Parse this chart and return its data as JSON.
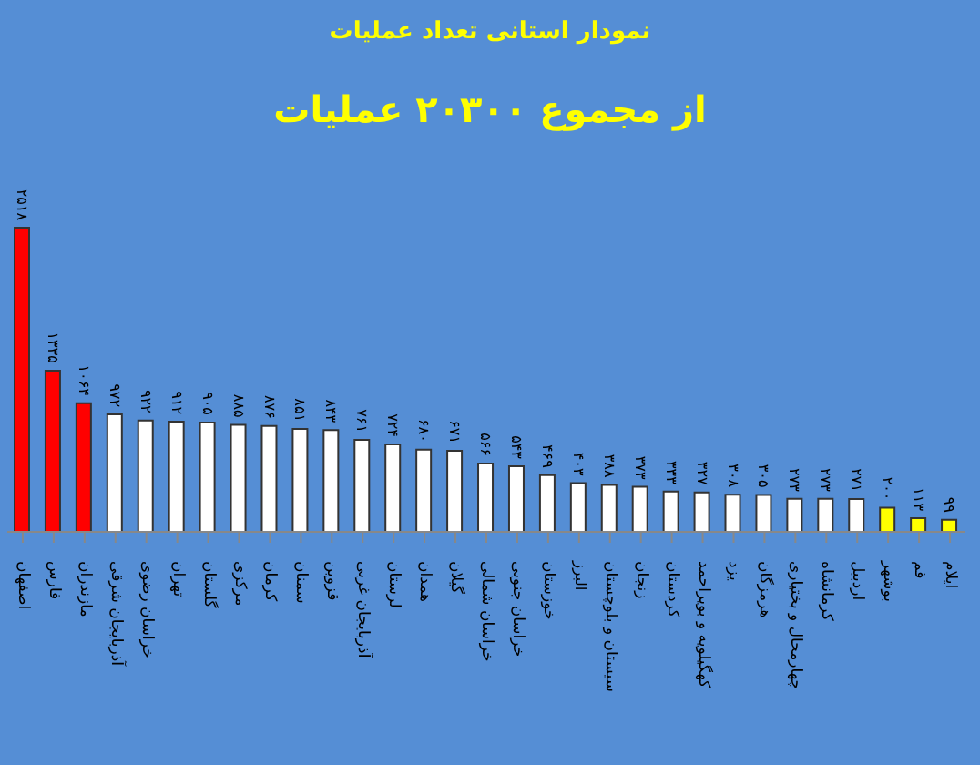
{
  "chart_data": {
    "type": "bar",
    "title": "نمودار استانی تعداد عملیات",
    "subtitle": "از مجموع ۲۰۳۰۰ عملیات",
    "categories": [
      "اصفهان",
      "فارس",
      "مازندران",
      "آذربایجان شرقی",
      "خراسان رضوی",
      "تهران",
      "گلستان",
      "مرکزی",
      "کرمان",
      "سمنان",
      "قزوین",
      "آذربایجان غربی",
      "لرستان",
      "همدان",
      "گیلان",
      "خراسان شمالی",
      "خراسان جنوبی",
      "خوزستان",
      "البرز",
      "سیستان و بلوچستان",
      "زنجان",
      "کردستان",
      "کهگیلویه و بویراحمد",
      "یزد",
      "هرمزگان",
      "چهارمحال و بختیاری",
      "کرمانشاه",
      "اردبیل",
      "بوشهر",
      "قم",
      "ایلام"
    ],
    "values": [
      2518,
      1335,
      1064,
      972,
      922,
      912,
      905,
      885,
      876,
      851,
      843,
      761,
      724,
      680,
      671,
      566,
      543,
      469,
      403,
      388,
      373,
      333,
      327,
      308,
      305,
      273,
      273,
      271,
      200,
      113,
      99
    ],
    "value_labels": [
      "۲۵۱۸",
      "۱۳۳۵",
      "۱۰۶۴",
      "۹۷۲",
      "۹۲۲",
      "۹۱۲",
      "۹۰۵",
      "۸۸۵",
      "۸۷۶",
      "۸۵۱",
      "۸۴۳",
      "۷۶۱",
      "۷۲۴",
      "۶۸۰",
      "۶۷۱",
      "۵۶۶",
      "۵۴۳",
      "۴۶۹",
      "۴۰۳",
      "۳۸۸",
      "۳۷۳",
      "۳۳۳",
      "۳۲۷",
      "۳۰۸",
      "۳۰۵",
      "۲۷۳",
      "۲۷۳",
      "۲۷۱",
      "۲۰۰",
      "۱۱۳",
      "۹۹"
    ],
    "colors": [
      "#ff0000",
      "#ff0000",
      "#ff0000",
      "#ffffff",
      "#ffffff",
      "#ffffff",
      "#ffffff",
      "#ffffff",
      "#ffffff",
      "#ffffff",
      "#ffffff",
      "#ffffff",
      "#ffffff",
      "#ffffff",
      "#ffffff",
      "#ffffff",
      "#ffffff",
      "#ffffff",
      "#ffffff",
      "#ffffff",
      "#ffffff",
      "#ffffff",
      "#ffffff",
      "#ffffff",
      "#ffffff",
      "#ffffff",
      "#ffffff",
      "#ffffff",
      "#ffff00",
      "#ffff00",
      "#ffff00"
    ]
  }
}
